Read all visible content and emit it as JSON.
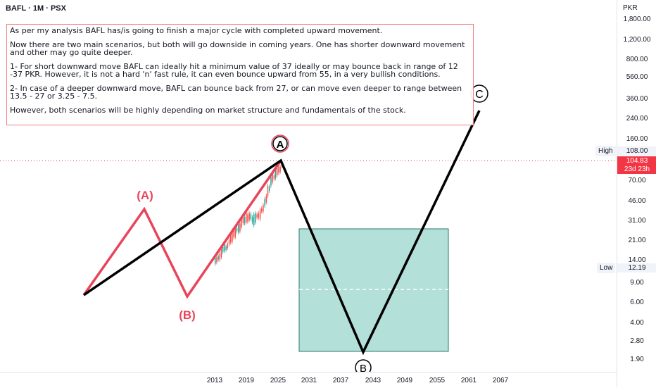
{
  "header": {
    "symbol": "BAFL · 1M · PSX"
  },
  "note": {
    "paragraphs": [
      "As per my analysis BAFL has/is going to finish a major cycle with completed upward movement.",
      "Now there are two main scenarios, but both will go downside in coming years. One has shorter downward movement and other may go quite deeper.",
      "1- For short downward move BAFL can ideally hit a minimum value of 37 ideally or may bounce back in range of  12 -37 PKR. However, it is not a hard 'n' fast rule, it can even bounce upward from 55, in a very bullish conditions.",
      "2- In case of a deeper downward move, BAFL can bounce back from 27, or can move even deeper to range between 13.5 - 27 or 3.25 - 7.5.",
      "However, both scenarios will be highly depending on market structure and fundamentals of the stock."
    ]
  },
  "price_axis": {
    "currency": "PKR",
    "ticks": [
      "1,800.00",
      "1,200.00",
      "800.00",
      "560.00",
      "360.00",
      "240.00",
      "160.00",
      "70.00",
      "46.00",
      "31.00",
      "21.00",
      "14.00",
      "9.00",
      "6.00",
      "4.00",
      "2.80",
      "1.90"
    ],
    "high_label": "High",
    "high_value": "108.00",
    "low_label": "Low",
    "low_value": "12.19",
    "last_price": "104.83",
    "countdown": "23d 23h"
  },
  "time_axis": {
    "ticks": [
      "2013",
      "2019",
      "2025",
      "2031",
      "2037",
      "2043",
      "2049",
      "2055",
      "2061",
      "2067"
    ]
  },
  "wave_labels": {
    "A_red": "(A)",
    "B_red": "(B)",
    "A_circle": "A",
    "B_circle": "B",
    "C_circle": "C"
  },
  "colors": {
    "red_wave": "#e8455a",
    "black_wave": "#000000",
    "box_fill": "#b3e0d9",
    "box_border": "#2d7a6a",
    "note_border": "#f08080",
    "last_price_bg": "#f23645",
    "candle_up": "#26a69a",
    "candle_down": "#ef5350"
  }
}
